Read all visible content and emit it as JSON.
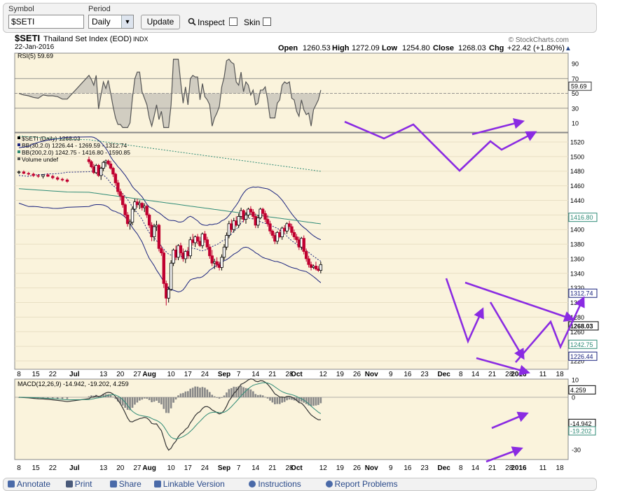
{
  "toolbar": {
    "symbol_label": "Symbol",
    "symbol_value": "$SETI",
    "period_label": "Period",
    "period_value": "Daily",
    "update_label": "Update",
    "inspect_label": "Inspect",
    "skin_label": "Skin"
  },
  "header": {
    "symbol": "$SETI",
    "name": "Thailand Set Index (EOD)",
    "exchange": "INDX",
    "date": "22-Jan-2016",
    "watermark": "© StockCharts.com",
    "open_label": "Open",
    "open": "1260.53",
    "high_label": "High",
    "high": "1272.09",
    "low_label": "Low",
    "low": "1254.80",
    "close_label": "Close",
    "close": "1268.03",
    "chg_label": "Chg",
    "chg": "+22.42 (+1.80%)",
    "chg_arrow": "▲"
  },
  "rsi": {
    "legend": "RSI(5) 59.69",
    "ticks": [
      "90",
      "70",
      "50",
      "30",
      "10"
    ],
    "tick_values": [
      90,
      70,
      50,
      30,
      10
    ],
    "last_label": "59.69",
    "last": 59.69,
    "overbought": 70,
    "oversold": 30
  },
  "price_panel": {
    "legend": [
      {
        "text": "$SETI (Daily) 1268.03",
        "color": "#000000"
      },
      {
        "text": "BB(30,2.0) 1226.44 - 1269.59 - 1312.74",
        "color": "#1a237e"
      },
      {
        "text": "BB(200,2.0) 1242.75 - 1416.80 - 1590.85",
        "color": "#2e8b76"
      },
      {
        "text": "Volume undef",
        "color": "#555555"
      }
    ],
    "ticks": [
      "1520",
      "1500",
      "1480",
      "1460",
      "1440",
      "1420",
      "1400",
      "1380",
      "1360",
      "1340",
      "1320",
      "1300",
      "1280",
      "1260",
      "1240",
      "1220"
    ],
    "tick_values": [
      1520,
      1500,
      1480,
      1460,
      1440,
      1420,
      1400,
      1380,
      1360,
      1340,
      1320,
      1300,
      1280,
      1260,
      1240,
      1220
    ],
    "value_labels": [
      {
        "text": "1416.80",
        "value": 1416.8,
        "color": "#2e8b76"
      },
      {
        "text": "1312.74",
        "value": 1312.74,
        "color": "#1a237e"
      },
      {
        "text": "1268.03",
        "value": 1268.03,
        "color": "#000000",
        "bold": true
      },
      {
        "text": "1242.75",
        "value": 1242.75,
        "color": "#2e8b76"
      },
      {
        "text": "1226.44",
        "value": 1226.44,
        "color": "#1a237e"
      }
    ]
  },
  "macd": {
    "legend": "MACD(12,26,9) -14.942, -19.202, 4.259",
    "ticks": [
      "10",
      "0",
      "-30"
    ],
    "tick_values": [
      10,
      0,
      -30
    ],
    "value_labels": [
      {
        "text": "4.259",
        "value": 4.259,
        "color": "#000000"
      },
      {
        "text": "-14.942",
        "value": -14.942,
        "color": "#000000"
      },
      {
        "text": "-19.202",
        "value": -19.202,
        "color": "#2e8b76"
      }
    ]
  },
  "x_axis_labels": [
    {
      "text": "8",
      "day": 0
    },
    {
      "text": "15",
      "day": 7
    },
    {
      "text": "22",
      "day": 14
    },
    {
      "text": "Jul",
      "day": 23,
      "bold": true
    },
    {
      "text": "13",
      "day": 35
    },
    {
      "text": "20",
      "day": 42
    },
    {
      "text": "27",
      "day": 49
    },
    {
      "text": "Aug",
      "day": 54,
      "bold": true
    },
    {
      "text": "10",
      "day": 63
    },
    {
      "text": "17",
      "day": 70
    },
    {
      "text": "24",
      "day": 77
    },
    {
      "text": "Sep",
      "day": 85,
      "bold": true
    },
    {
      "text": "7",
      "day": 91
    },
    {
      "text": "14",
      "day": 98
    },
    {
      "text": "21",
      "day": 105
    },
    {
      "text": "28",
      "day": 112
    },
    {
      "text": "Oct",
      "day": 115,
      "bold": true
    },
    {
      "text": "12",
      "day": 126
    },
    {
      "text": "19",
      "day": 133
    },
    {
      "text": "26",
      "day": 140
    },
    {
      "text": "Nov",
      "day": 146,
      "bold": true
    },
    {
      "text": "9",
      "day": 154
    },
    {
      "text": "16",
      "day": 161
    },
    {
      "text": "23",
      "day": 168
    },
    {
      "text": "Dec",
      "day": 176,
      "bold": true
    },
    {
      "text": "8",
      "day": 183
    },
    {
      "text": "14",
      "day": 189
    },
    {
      "text": "21",
      "day": 196
    },
    {
      "text": "28",
      "day": 203
    },
    {
      "text": "2016",
      "day": 207,
      "bold": true
    },
    {
      "text": "11",
      "day": 217
    },
    {
      "text": "18",
      "day": 224
    }
  ],
  "footer": [
    {
      "text": "Annotate",
      "icon": "pencil-icon",
      "color": "#4a6aa8",
      "shape": "fic-sq"
    },
    {
      "text": "Print",
      "icon": "printer-icon",
      "color": "#4a5a7a",
      "shape": "fic-sq"
    },
    {
      "text": "Share",
      "icon": "share-icon",
      "color": "#4a6aa8",
      "shape": "fic-sq"
    },
    {
      "text": "Linkable Version",
      "icon": "bookmark-icon",
      "color": "#4a6aa8",
      "shape": "fic-sq"
    },
    {
      "text": "Instructions",
      "icon": "info-icon",
      "color": "#4a6aa8",
      "shape": "fic-round"
    },
    {
      "text": "Report Problems",
      "icon": "gear-icon",
      "color": "#4a6aa8",
      "shape": "fic-round"
    }
  ],
  "colors": {
    "panel_bg": "#faf3dc",
    "up": "#000000",
    "down": "#c00030",
    "bb30": "#1a237e",
    "bb200": "#2e8b76",
    "annotation": "#8a2be2",
    "rsi_fill": "#a0a0a0"
  },
  "chart_data": {
    "type": "candlestick",
    "symbol": "$SETI",
    "x_unit": "trading days from 8 Jun 2015",
    "candles": [
      {
        "x": 0,
        "o": 1478,
        "h": 1481,
        "l": 1476,
        "c": 1479
      },
      {
        "x": 2,
        "o": 1479,
        "h": 1481,
        "l": 1476,
        "c": 1477
      },
      {
        "x": 4,
        "o": 1477,
        "h": 1479,
        "l": 1474,
        "c": 1476
      },
      {
        "x": 6,
        "o": 1476,
        "h": 1478,
        "l": 1472,
        "c": 1474
      },
      {
        "x": 8,
        "o": 1474,
        "h": 1476,
        "l": 1471,
        "c": 1473
      },
      {
        "x": 10,
        "o": 1473,
        "h": 1476,
        "l": 1470,
        "c": 1475
      },
      {
        "x": 12,
        "o": 1475,
        "h": 1477,
        "l": 1472,
        "c": 1473
      },
      {
        "x": 14,
        "o": 1473,
        "h": 1475,
        "l": 1469,
        "c": 1471
      },
      {
        "x": 16,
        "o": 1471,
        "h": 1473,
        "l": 1467,
        "c": 1469
      },
      {
        "x": 18,
        "o": 1469,
        "h": 1471,
        "l": 1466,
        "c": 1468
      },
      {
        "x": 20,
        "o": 1468,
        "h": 1470,
        "l": 1464,
        "c": 1466
      },
      {
        "x": 29,
        "o": 1496,
        "h": 1500,
        "l": 1490,
        "c": 1493
      },
      {
        "x": 30,
        "o": 1493,
        "h": 1495,
        "l": 1484,
        "c": 1486
      },
      {
        "x": 31,
        "o": 1486,
        "h": 1490,
        "l": 1476,
        "c": 1478
      },
      {
        "x": 32,
        "o": 1478,
        "h": 1490,
        "l": 1476,
        "c": 1488
      },
      {
        "x": 33,
        "o": 1488,
        "h": 1490,
        "l": 1472,
        "c": 1474
      },
      {
        "x": 34,
        "o": 1474,
        "h": 1486,
        "l": 1468,
        "c": 1484
      },
      {
        "x": 35,
        "o": 1484,
        "h": 1494,
        "l": 1480,
        "c": 1492
      },
      {
        "x": 36,
        "o": 1492,
        "h": 1496,
        "l": 1486,
        "c": 1494
      },
      {
        "x": 37,
        "o": 1494,
        "h": 1496,
        "l": 1488,
        "c": 1490
      },
      {
        "x": 38,
        "o": 1490,
        "h": 1494,
        "l": 1482,
        "c": 1484
      },
      {
        "x": 39,
        "o": 1484,
        "h": 1486,
        "l": 1472,
        "c": 1476
      },
      {
        "x": 40,
        "o": 1476,
        "h": 1478,
        "l": 1460,
        "c": 1464
      },
      {
        "x": 41,
        "o": 1464,
        "h": 1468,
        "l": 1448,
        "c": 1452
      },
      {
        "x": 42,
        "o": 1452,
        "h": 1456,
        "l": 1440,
        "c": 1446
      },
      {
        "x": 43,
        "o": 1446,
        "h": 1450,
        "l": 1430,
        "c": 1434
      },
      {
        "x": 44,
        "o": 1434,
        "h": 1436,
        "l": 1416,
        "c": 1420
      },
      {
        "x": 45,
        "o": 1420,
        "h": 1424,
        "l": 1404,
        "c": 1408
      },
      {
        "x": 46,
        "o": 1408,
        "h": 1414,
        "l": 1400,
        "c": 1410
      },
      {
        "x": 47,
        "o": 1410,
        "h": 1432,
        "l": 1406,
        "c": 1428
      },
      {
        "x": 48,
        "o": 1428,
        "h": 1442,
        "l": 1424,
        "c": 1438
      },
      {
        "x": 49,
        "o": 1438,
        "h": 1442,
        "l": 1430,
        "c": 1434
      },
      {
        "x": 50,
        "o": 1434,
        "h": 1440,
        "l": 1428,
        "c": 1436
      },
      {
        "x": 51,
        "o": 1436,
        "h": 1438,
        "l": 1426,
        "c": 1430
      },
      {
        "x": 52,
        "o": 1430,
        "h": 1436,
        "l": 1424,
        "c": 1432
      },
      {
        "x": 53,
        "o": 1432,
        "h": 1434,
        "l": 1416,
        "c": 1420
      },
      {
        "x": 54,
        "o": 1420,
        "h": 1422,
        "l": 1402,
        "c": 1406
      },
      {
        "x": 55,
        "o": 1406,
        "h": 1410,
        "l": 1384,
        "c": 1390
      },
      {
        "x": 56,
        "o": 1390,
        "h": 1408,
        "l": 1384,
        "c": 1404
      },
      {
        "x": 57,
        "o": 1404,
        "h": 1412,
        "l": 1398,
        "c": 1406
      },
      {
        "x": 58,
        "o": 1406,
        "h": 1408,
        "l": 1370,
        "c": 1374
      },
      {
        "x": 59,
        "o": 1374,
        "h": 1378,
        "l": 1364,
        "c": 1368
      },
      {
        "x": 60,
        "o": 1368,
        "h": 1372,
        "l": 1320,
        "c": 1326
      },
      {
        "x": 61,
        "o": 1326,
        "h": 1330,
        "l": 1296,
        "c": 1306
      },
      {
        "x": 62,
        "o": 1306,
        "h": 1322,
        "l": 1300,
        "c": 1318
      },
      {
        "x": 63,
        "o": 1318,
        "h": 1358,
        "l": 1316,
        "c": 1354
      },
      {
        "x": 64,
        "o": 1354,
        "h": 1374,
        "l": 1350,
        "c": 1372
      },
      {
        "x": 65,
        "o": 1372,
        "h": 1378,
        "l": 1358,
        "c": 1362
      },
      {
        "x": 66,
        "o": 1362,
        "h": 1380,
        "l": 1358,
        "c": 1378
      },
      {
        "x": 67,
        "o": 1378,
        "h": 1382,
        "l": 1364,
        "c": 1368
      },
      {
        "x": 68,
        "o": 1368,
        "h": 1374,
        "l": 1356,
        "c": 1360
      },
      {
        "x": 69,
        "o": 1360,
        "h": 1372,
        "l": 1354,
        "c": 1370
      },
      {
        "x": 70,
        "o": 1370,
        "h": 1376,
        "l": 1360,
        "c": 1364
      },
      {
        "x": 71,
        "o": 1364,
        "h": 1390,
        "l": 1360,
        "c": 1386
      },
      {
        "x": 72,
        "o": 1386,
        "h": 1394,
        "l": 1378,
        "c": 1382
      },
      {
        "x": 73,
        "o": 1382,
        "h": 1392,
        "l": 1376,
        "c": 1390
      },
      {
        "x": 74,
        "o": 1390,
        "h": 1394,
        "l": 1380,
        "c": 1384
      },
      {
        "x": 75,
        "o": 1384,
        "h": 1390,
        "l": 1376,
        "c": 1378
      },
      {
        "x": 76,
        "o": 1378,
        "h": 1396,
        "l": 1374,
        "c": 1394
      },
      {
        "x": 77,
        "o": 1394,
        "h": 1398,
        "l": 1382,
        "c": 1386
      },
      {
        "x": 78,
        "o": 1386,
        "h": 1390,
        "l": 1372,
        "c": 1376
      },
      {
        "x": 79,
        "o": 1376,
        "h": 1380,
        "l": 1360,
        "c": 1364
      },
      {
        "x": 80,
        "o": 1364,
        "h": 1372,
        "l": 1350,
        "c": 1354
      },
      {
        "x": 81,
        "o": 1354,
        "h": 1360,
        "l": 1346,
        "c": 1356
      },
      {
        "x": 82,
        "o": 1356,
        "h": 1362,
        "l": 1348,
        "c": 1352
      },
      {
        "x": 83,
        "o": 1352,
        "h": 1356,
        "l": 1344,
        "c": 1348
      },
      {
        "x": 84,
        "o": 1348,
        "h": 1366,
        "l": 1344,
        "c": 1362
      },
      {
        "x": 85,
        "o": 1362,
        "h": 1380,
        "l": 1358,
        "c": 1376
      },
      {
        "x": 86,
        "o": 1376,
        "h": 1396,
        "l": 1372,
        "c": 1392
      },
      {
        "x": 87,
        "o": 1392,
        "h": 1412,
        "l": 1388,
        "c": 1408
      },
      {
        "x": 88,
        "o": 1408,
        "h": 1414,
        "l": 1396,
        "c": 1400
      },
      {
        "x": 89,
        "o": 1400,
        "h": 1416,
        "l": 1396,
        "c": 1412
      },
      {
        "x": 90,
        "o": 1412,
        "h": 1418,
        "l": 1404,
        "c": 1406
      },
      {
        "x": 91,
        "o": 1406,
        "h": 1422,
        "l": 1402,
        "c": 1418
      },
      {
        "x": 92,
        "o": 1418,
        "h": 1430,
        "l": 1414,
        "c": 1426
      },
      {
        "x": 93,
        "o": 1426,
        "h": 1428,
        "l": 1410,
        "c": 1414
      },
      {
        "x": 94,
        "o": 1414,
        "h": 1424,
        "l": 1408,
        "c": 1420
      },
      {
        "x": 95,
        "o": 1420,
        "h": 1430,
        "l": 1416,
        "c": 1428
      },
      {
        "x": 96,
        "o": 1428,
        "h": 1432,
        "l": 1420,
        "c": 1424
      },
      {
        "x": 97,
        "o": 1424,
        "h": 1428,
        "l": 1414,
        "c": 1418
      },
      {
        "x": 98,
        "o": 1418,
        "h": 1422,
        "l": 1402,
        "c": 1406
      },
      {
        "x": 99,
        "o": 1406,
        "h": 1420,
        "l": 1402,
        "c": 1416
      },
      {
        "x": 100,
        "o": 1416,
        "h": 1430,
        "l": 1414,
        "c": 1428
      },
      {
        "x": 101,
        "o": 1428,
        "h": 1430,
        "l": 1418,
        "c": 1422
      },
      {
        "x": 102,
        "o": 1422,
        "h": 1426,
        "l": 1410,
        "c": 1414
      },
      {
        "x": 103,
        "o": 1414,
        "h": 1420,
        "l": 1404,
        "c": 1408
      },
      {
        "x": 104,
        "o": 1408,
        "h": 1412,
        "l": 1394,
        "c": 1398
      },
      {
        "x": 105,
        "o": 1398,
        "h": 1400,
        "l": 1388,
        "c": 1392
      },
      {
        "x": 106,
        "o": 1392,
        "h": 1396,
        "l": 1380,
        "c": 1384
      },
      {
        "x": 107,
        "o": 1384,
        "h": 1398,
        "l": 1380,
        "c": 1396
      },
      {
        "x": 108,
        "o": 1396,
        "h": 1400,
        "l": 1388,
        "c": 1390
      },
      {
        "x": 109,
        "o": 1390,
        "h": 1404,
        "l": 1386,
        "c": 1402
      },
      {
        "x": 110,
        "o": 1402,
        "h": 1406,
        "l": 1394,
        "c": 1398
      },
      {
        "x": 111,
        "o": 1398,
        "h": 1410,
        "l": 1394,
        "c": 1408
      },
      {
        "x": 112,
        "o": 1408,
        "h": 1412,
        "l": 1400,
        "c": 1404
      },
      {
        "x": 113,
        "o": 1404,
        "h": 1408,
        "l": 1392,
        "c": 1396
      },
      {
        "x": 114,
        "o": 1396,
        "h": 1400,
        "l": 1386,
        "c": 1390
      },
      {
        "x": 115,
        "o": 1390,
        "h": 1394,
        "l": 1382,
        "c": 1386
      },
      {
        "x": 116,
        "o": 1386,
        "h": 1390,
        "l": 1372,
        "c": 1376
      },
      {
        "x": 117,
        "o": 1376,
        "h": 1390,
        "l": 1372,
        "c": 1388
      },
      {
        "x": 118,
        "o": 1388,
        "h": 1392,
        "l": 1366,
        "c": 1370
      },
      {
        "x": 119,
        "o": 1370,
        "h": 1374,
        "l": 1356,
        "c": 1360
      },
      {
        "x": 120,
        "o": 1360,
        "h": 1364,
        "l": 1348,
        "c": 1352
      },
      {
        "x": 121,
        "o": 1352,
        "h": 1356,
        "l": 1344,
        "c": 1348
      },
      {
        "x": 122,
        "o": 1348,
        "h": 1352,
        "l": 1346,
        "c": 1350
      },
      {
        "x": 123,
        "o": 1350,
        "h": 1356,
        "l": 1344,
        "c": 1346
      },
      {
        "x": 124,
        "o": 1346,
        "h": 1350,
        "l": 1342,
        "c": 1344
      },
      {
        "x": 125,
        "o": 1344,
        "h": 1356,
        "l": 1340,
        "c": 1352
      }
    ],
    "annotations": "purple arrows: RSI higher lows, price falling wedge, MACD rising"
  }
}
